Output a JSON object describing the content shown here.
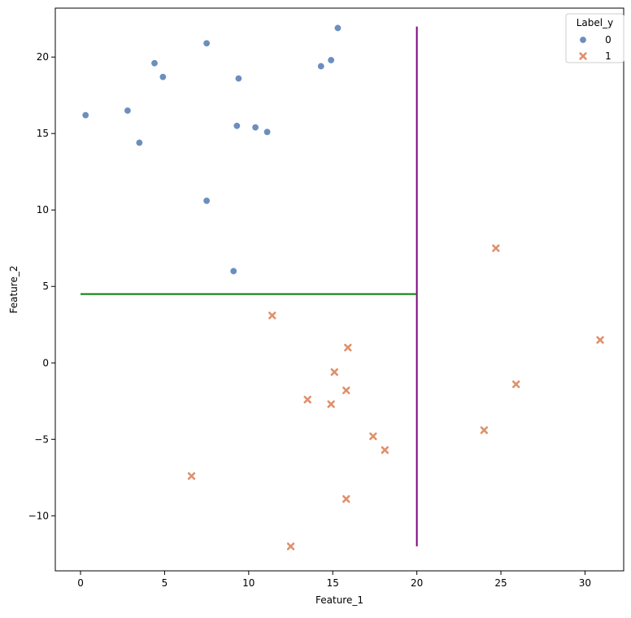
{
  "chart_data": {
    "type": "scatter",
    "xlabel": "Feature_1",
    "ylabel": "Feature_2",
    "xlim": [
      -1.5,
      32.3
    ],
    "ylim": [
      -13.6,
      23.2
    ],
    "x_ticks": [
      0,
      5,
      10,
      15,
      20,
      25,
      30
    ],
    "x_tick_labels": [
      "0",
      "5",
      "10",
      "15",
      "20",
      "25",
      "30"
    ],
    "y_ticks": [
      -10,
      -5,
      0,
      5,
      10,
      15,
      20
    ],
    "y_tick_labels": [
      "−10",
      "−5",
      "0",
      "5",
      "10",
      "15",
      "20"
    ],
    "grid": false,
    "legend": {
      "title": "Label_y",
      "placement": "top-right"
    },
    "series": [
      {
        "name": "0",
        "marker": "circle",
        "color": "#6c8ebf",
        "points": [
          [
            0.3,
            16.2
          ],
          [
            2.8,
            16.5
          ],
          [
            3.5,
            14.4
          ],
          [
            4.4,
            19.6
          ],
          [
            4.9,
            18.7
          ],
          [
            7.5,
            20.9
          ],
          [
            7.5,
            10.6
          ],
          [
            9.1,
            6.0
          ],
          [
            9.3,
            15.5
          ],
          [
            9.4,
            18.6
          ],
          [
            10.4,
            15.4
          ],
          [
            11.1,
            15.1
          ],
          [
            14.3,
            19.4
          ],
          [
            14.9,
            19.8
          ],
          [
            15.3,
            21.9
          ]
        ]
      },
      {
        "name": "1",
        "marker": "x",
        "color": "#e0906a",
        "points": [
          [
            6.6,
            -7.4
          ],
          [
            11.4,
            3.1
          ],
          [
            12.5,
            -12.0
          ],
          [
            13.5,
            -2.4
          ],
          [
            14.9,
            -2.7
          ],
          [
            15.1,
            -0.6
          ],
          [
            15.8,
            -1.8
          ],
          [
            15.8,
            -8.9
          ],
          [
            15.9,
            1.0
          ],
          [
            17.4,
            -4.8
          ],
          [
            18.1,
            -5.7
          ],
          [
            24.0,
            -4.4
          ],
          [
            24.7,
            7.5
          ],
          [
            25.9,
            -1.4
          ],
          [
            30.9,
            1.5
          ]
        ]
      }
    ],
    "lines": [
      {
        "name": "vertical-split",
        "color": "#800080",
        "x": [
          20,
          20
        ],
        "y": [
          -12,
          22
        ]
      },
      {
        "name": "horizontal-split",
        "color": "#008000",
        "x": [
          0,
          20
        ],
        "y": [
          4.5,
          4.5
        ]
      }
    ]
  }
}
